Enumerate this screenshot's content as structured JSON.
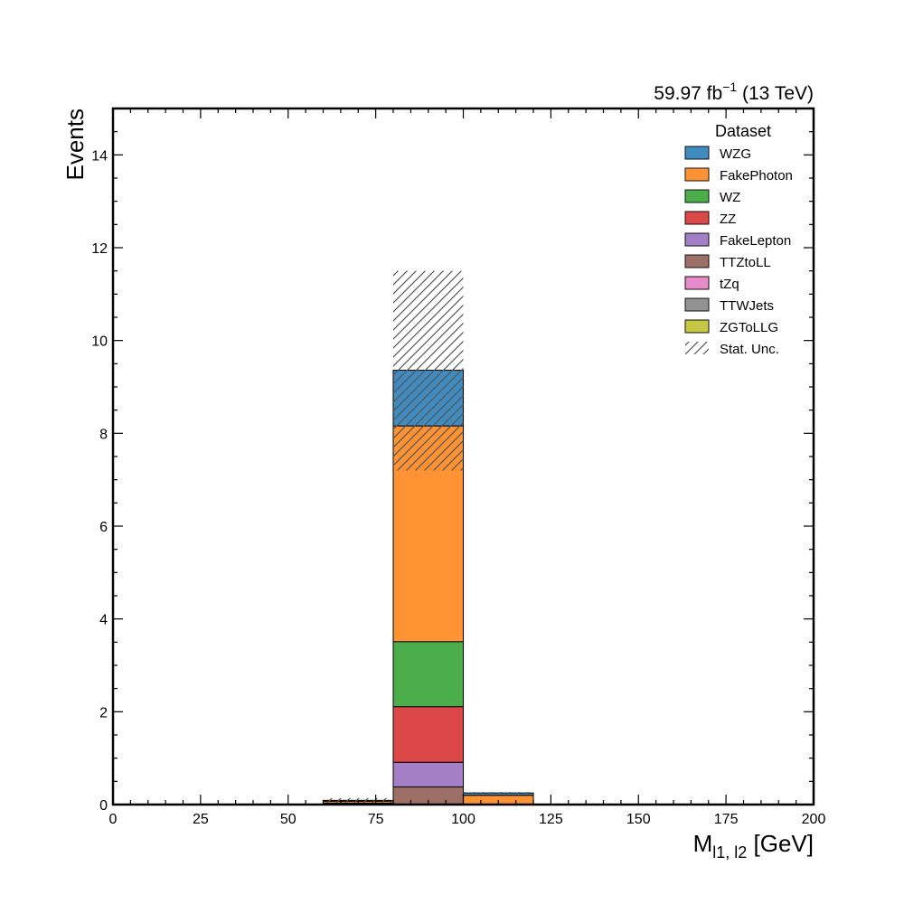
{
  "header": {
    "lumi_value": "59.97 fb",
    "lumi_exp": "−1",
    "energy": " (13 TeV)"
  },
  "axes": {
    "xlabel_main": "M",
    "xlabel_sub": "l1, l2",
    "xlabel_unit": " [GeV]",
    "ylabel": "Events"
  },
  "chart_data": {
    "type": "bar",
    "stacked": true,
    "bin_edges": [
      0,
      20,
      40,
      60,
      80,
      100,
      120,
      140,
      160,
      180,
      200
    ],
    "xlim": [
      0,
      200
    ],
    "ylim": [
      0,
      15
    ],
    "x_ticks": [
      0,
      25,
      50,
      75,
      100,
      125,
      150,
      175,
      200
    ],
    "y_ticks": [
      0,
      2,
      4,
      6,
      8,
      10,
      12,
      14
    ],
    "x_tick_labels": [
      "0",
      "25",
      "50",
      "75",
      "100",
      "125",
      "150",
      "175",
      "200"
    ],
    "y_tick_labels": [
      "0",
      "2",
      "4",
      "6",
      "8",
      "10",
      "12",
      "14"
    ],
    "legend_title": "Dataset",
    "legend_position": "top-right",
    "series": [
      {
        "name": "WZG",
        "color": "#1f77b4",
        "values": [
          0,
          0,
          0,
          0.02,
          1.2,
          0.05,
          0,
          0,
          0,
          0
        ]
      },
      {
        "name": "FakePhoton",
        "color": "#ff7f0e",
        "values": [
          0,
          0,
          0,
          0.04,
          4.65,
          0.2,
          0,
          0,
          0,
          0
        ]
      },
      {
        "name": "WZ",
        "color": "#2ca02c",
        "values": [
          0,
          0,
          0,
          0.01,
          1.4,
          0,
          0,
          0,
          0,
          0
        ]
      },
      {
        "name": "ZZ",
        "color": "#d62728",
        "values": [
          0,
          0,
          0,
          0.01,
          1.2,
          0,
          0,
          0,
          0,
          0
        ]
      },
      {
        "name": "FakeLepton",
        "color": "#9467bd",
        "values": [
          0,
          0,
          0,
          0.01,
          0.53,
          0,
          0,
          0,
          0,
          0
        ]
      },
      {
        "name": "TTZtoLL",
        "color": "#8c564b",
        "values": [
          0,
          0,
          0,
          0,
          0.38,
          0,
          0,
          0,
          0,
          0
        ]
      },
      {
        "name": "tZq",
        "color": "#e377c2",
        "values": [
          0,
          0,
          0,
          0,
          0,
          0,
          0,
          0,
          0,
          0
        ]
      },
      {
        "name": "TTWJets",
        "color": "#7f7f7f",
        "values": [
          0,
          0,
          0,
          0,
          0,
          0,
          0,
          0,
          0,
          0
        ]
      },
      {
        "name": "ZGToLLG",
        "color": "#bcbd22",
        "values": [
          0,
          0,
          0,
          0,
          0,
          0,
          0,
          0,
          0,
          0
        ]
      }
    ],
    "stat_unc": {
      "name": "Stat. Unc.",
      "bins": [
        {
          "bin": 3,
          "low": 0.04,
          "high": 0.14
        },
        {
          "bin": 4,
          "low": 7.2,
          "high": 11.5
        },
        {
          "bin": 5,
          "low": 0.23,
          "high": 0.27
        }
      ]
    }
  }
}
